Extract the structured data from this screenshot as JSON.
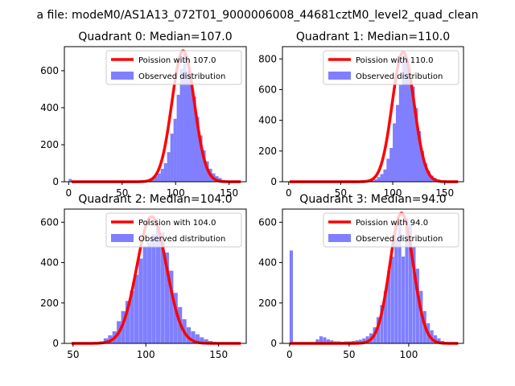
{
  "suptitle": "a file: modeM0/AS1A13_072T01_9000006008_44681cztM0_level2_quad_clean",
  "colors": {
    "hist": "#7f7fff",
    "poisson": "#ff0000",
    "axis": "#000000",
    "legend_border": "#cccccc"
  },
  "chart_data": [
    {
      "type": "bar",
      "title": "Quadrant 0: Median=107.0",
      "xlim": [
        -4,
        166
      ],
      "ylim": [
        0,
        730
      ],
      "xticks": [
        0,
        50,
        100,
        150
      ],
      "yticks": [
        0,
        200,
        400,
        600
      ],
      "bin_width": 3.1,
      "legend": [
        "Poission with 107.0",
        "Observed distribution"
      ],
      "legend_loc": "upper right",
      "poisson_mean": 107,
      "poisson_peak": 708,
      "poisson_sigma": 10.5,
      "histogram": [
        [
          0,
          15
        ],
        [
          71,
          5
        ],
        [
          74,
          10
        ],
        [
          77,
          20
        ],
        [
          80,
          30
        ],
        [
          83,
          45
        ],
        [
          86,
          70
        ],
        [
          89,
          100
        ],
        [
          92,
          160
        ],
        [
          95,
          260
        ],
        [
          98,
          340
        ],
        [
          101,
          470
        ],
        [
          104,
          610
        ],
        [
          107,
          690
        ],
        [
          110,
          600
        ],
        [
          113,
          560
        ],
        [
          116,
          460
        ],
        [
          119,
          350
        ],
        [
          122,
          250
        ],
        [
          125,
          170
        ],
        [
          128,
          110
        ],
        [
          131,
          70
        ],
        [
          134,
          45
        ],
        [
          137,
          30
        ],
        [
          140,
          20
        ],
        [
          143,
          10
        ],
        [
          146,
          6
        ],
        [
          149,
          5
        ],
        [
          152,
          3
        ],
        [
          155,
          2
        ],
        [
          158,
          1
        ],
        [
          161,
          1
        ]
      ]
    },
    {
      "type": "bar",
      "title": "Quadrant 1: Median=110.0",
      "xlim": [
        -6,
        168
      ],
      "ylim": [
        0,
        880
      ],
      "xticks": [
        0,
        50,
        100,
        150
      ],
      "yticks": [
        0,
        200,
        400,
        600,
        800
      ],
      "bin_width": 3.2,
      "legend": [
        "Poission with 110.0",
        "Observed distribution"
      ],
      "legend_loc": "upper right",
      "poisson_mean": 110,
      "poisson_peak": 845,
      "poisson_sigma": 10.5,
      "histogram": [
        [
          79,
          8
        ],
        [
          82,
          15
        ],
        [
          85,
          30
        ],
        [
          88,
          50
        ],
        [
          91,
          80
        ],
        [
          94,
          150
        ],
        [
          97,
          220
        ],
        [
          100,
          380
        ],
        [
          103,
          500
        ],
        [
          106,
          630
        ],
        [
          109,
          820
        ],
        [
          112,
          780
        ],
        [
          115,
          700
        ],
        [
          118,
          620
        ],
        [
          121,
          480
        ],
        [
          124,
          330
        ],
        [
          127,
          200
        ],
        [
          130,
          120
        ],
        [
          133,
          70
        ],
        [
          136,
          40
        ],
        [
          139,
          25
        ],
        [
          142,
          15
        ],
        [
          145,
          8
        ],
        [
          148,
          5
        ]
      ]
    },
    {
      "type": "bar",
      "title": "Quadrant 2: Median=104.0",
      "xlim": [
        44,
        169
      ],
      "ylim": [
        0,
        665
      ],
      "xticks": [
        50,
        100,
        150
      ],
      "yticks": [
        0,
        200,
        400,
        600
      ],
      "bin_width": 2.9,
      "legend": [
        "Poission with 104.0",
        "Observed distribution"
      ],
      "legend_loc": "upper right",
      "poisson_mean": 104,
      "poisson_peak": 628,
      "poisson_sigma": 10.2,
      "histogram": [
        [
          62,
          3
        ],
        [
          65,
          5
        ],
        [
          68,
          10
        ],
        [
          71,
          25
        ],
        [
          74,
          40
        ],
        [
          77,
          60
        ],
        [
          80,
          110
        ],
        [
          83,
          160
        ],
        [
          86,
          210
        ],
        [
          89,
          260
        ],
        [
          92,
          340
        ],
        [
          95,
          420
        ],
        [
          98,
          480
        ],
        [
          101,
          500
        ],
        [
          104,
          540
        ],
        [
          107,
          580
        ],
        [
          110,
          550
        ],
        [
          113,
          450
        ],
        [
          116,
          360
        ],
        [
          119,
          250
        ],
        [
          122,
          180
        ],
        [
          125,
          120
        ],
        [
          128,
          80
        ],
        [
          131,
          60
        ],
        [
          134,
          45
        ],
        [
          137,
          30
        ],
        [
          140,
          20
        ],
        [
          143,
          12
        ],
        [
          146,
          8
        ],
        [
          149,
          5
        ],
        [
          152,
          3
        ]
      ]
    },
    {
      "type": "bar",
      "title": "Quadrant 3: Median=94.0",
      "xlim": [
        -6,
        146
      ],
      "ylim": [
        0,
        665
      ],
      "xticks": [
        0,
        50,
        100
      ],
      "yticks": [
        0,
        200,
        400,
        600
      ],
      "bin_width": 2.8,
      "legend": [
        "Poission with 94.0",
        "Observed distribution"
      ],
      "legend_loc": "upper right",
      "poisson_mean": 94,
      "poisson_peak": 645,
      "poisson_sigma": 9.8,
      "histogram": [
        [
          0,
          460
        ],
        [
          22,
          20
        ],
        [
          25,
          35
        ],
        [
          28,
          30
        ],
        [
          31,
          20
        ],
        [
          34,
          15
        ],
        [
          37,
          10
        ],
        [
          40,
          10
        ],
        [
          43,
          8
        ],
        [
          46,
          10
        ],
        [
          49,
          10
        ],
        [
          52,
          12
        ],
        [
          55,
          15
        ],
        [
          58,
          18
        ],
        [
          61,
          25
        ],
        [
          64,
          35
        ],
        [
          67,
          50
        ],
        [
          70,
          80
        ],
        [
          73,
          130
        ],
        [
          76,
          190
        ],
        [
          79,
          260
        ],
        [
          82,
          360
        ],
        [
          85,
          430
        ],
        [
          88,
          520
        ],
        [
          91,
          600
        ],
        [
          94,
          430
        ],
        [
          97,
          620
        ],
        [
          100,
          590
        ],
        [
          103,
          480
        ],
        [
          106,
          370
        ],
        [
          109,
          260
        ],
        [
          112,
          160
        ],
        [
          115,
          100
        ],
        [
          118,
          65
        ],
        [
          121,
          40
        ],
        [
          124,
          25
        ],
        [
          127,
          12
        ],
        [
          130,
          6
        ],
        [
          133,
          3
        ]
      ]
    }
  ]
}
